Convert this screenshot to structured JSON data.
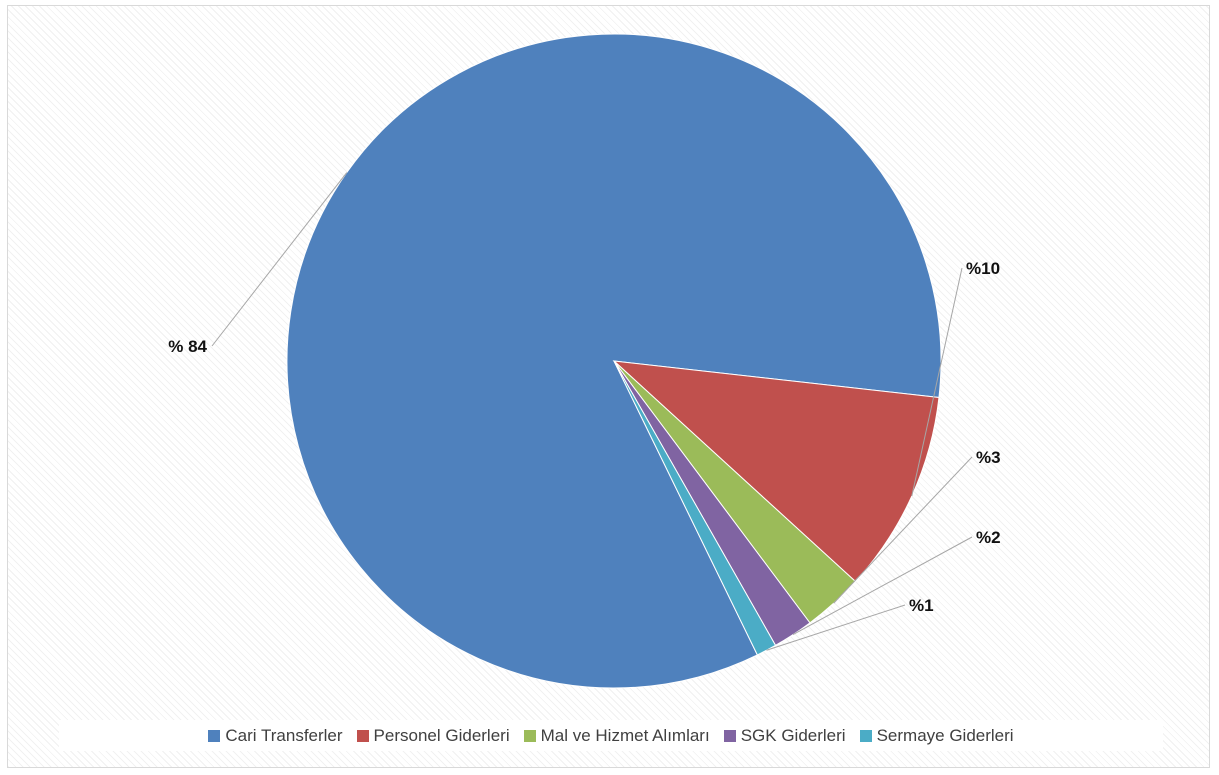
{
  "chart_data": {
    "type": "pie",
    "title": "",
    "series": [
      {
        "name": "Cari Transferler",
        "value": 84,
        "label": "% 84",
        "color": "#4f81bd"
      },
      {
        "name": "Personel Giderleri",
        "value": 10,
        "label": "%10",
        "color": "#c0504d"
      },
      {
        "name": "Mal ve Hizmet Alımları",
        "value": 3,
        "label": "%3",
        "color": "#9bbb59"
      },
      {
        "name": "SGK Giderleri",
        "value": 2,
        "label": "%2",
        "color": "#8064a2"
      },
      {
        "name": "Sermaye Giderleri",
        "value": 1,
        "label": "%1",
        "color": "#4bacc6"
      }
    ],
    "legend_position": "bottom"
  }
}
